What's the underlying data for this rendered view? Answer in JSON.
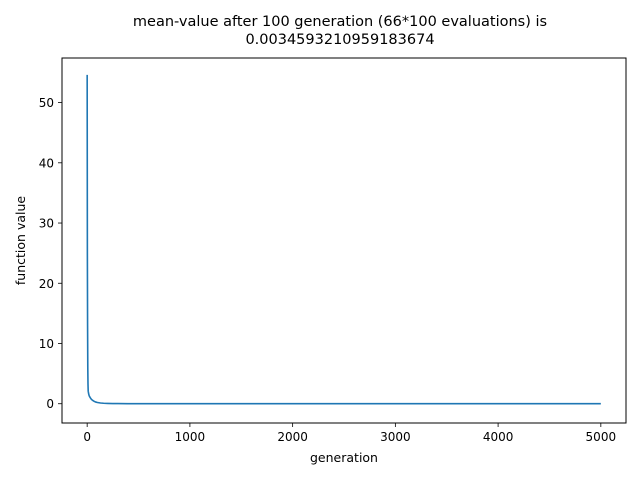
{
  "chart_data": {
    "type": "line",
    "title_line1": "mean-value after 100 generation (66*100 evaluations) is",
    "title_line2": "0.0034593210959183674",
    "xlabel": "generation",
    "ylabel": "function value",
    "xlim": [
      -245,
      5245
    ],
    "ylim": [
      -3.2,
      57.4
    ],
    "xticks": [
      0,
      1000,
      2000,
      3000,
      4000,
      5000
    ],
    "xtick_labels": [
      "0",
      "1000",
      "2000",
      "3000",
      "4000",
      "5000"
    ],
    "yticks": [
      0,
      10,
      20,
      30,
      40,
      50
    ],
    "ytick_labels": [
      "0",
      "10",
      "20",
      "30",
      "40",
      "50"
    ],
    "grid": false,
    "series": [
      {
        "color": "#1f77b4",
        "x": [
          0,
          2,
          4,
          6,
          8,
          10,
          15,
          20,
          30,
          40,
          50,
          60,
          70,
          80,
          100,
          130,
          160,
          200,
          250,
          300,
          400,
          500,
          700,
          1000,
          1500,
          2000,
          3000,
          4000,
          5000
        ],
        "y": [
          54.6,
          25.0,
          13.0,
          6.0,
          3.3,
          2.1,
          1.6,
          1.3,
          1.0,
          0.75,
          0.6,
          0.48,
          0.38,
          0.3,
          0.2,
          0.12,
          0.08,
          0.05,
          0.03,
          0.02,
          0.012,
          0.008,
          0.005,
          0.004,
          0.0035,
          0.0035,
          0.0035,
          0.0035,
          0.0035
        ]
      }
    ]
  }
}
